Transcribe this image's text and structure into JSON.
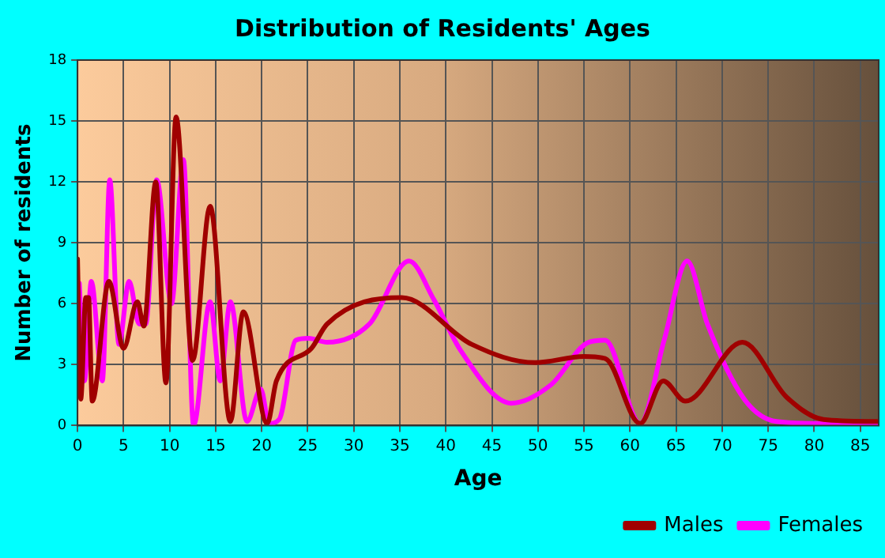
{
  "chart_data": {
    "type": "line",
    "title": "Distribution of Residents' Ages",
    "xlabel": "Age",
    "ylabel": "Number of residents",
    "xlim": [
      0,
      87
    ],
    "xticks": [
      0,
      5,
      10,
      15,
      20,
      25,
      30,
      35,
      40,
      45,
      50,
      55,
      60,
      65,
      70,
      75,
      80,
      85
    ],
    "ylim": [
      0,
      18
    ],
    "yticks": [
      0,
      3,
      6,
      9,
      12,
      15,
      18
    ],
    "grid": true,
    "legend": "bottom right",
    "marker": "none",
    "line_style": "solid",
    "series": [
      {
        "name": "Males",
        "color": "#a00000",
        "x": [
          0,
          0.35,
          0.9,
          1.2,
          1.6,
          3.4,
          5,
          6.5,
          7.2,
          8.5,
          9.6,
          10.7,
          12.5,
          14.4,
          16.6,
          18,
          20.6,
          21.6,
          25.4,
          27.1,
          35.2,
          42.8,
          49.7,
          55,
          57.3,
          61.1,
          63.6,
          66,
          72.2,
          77,
          81,
          86.8
        ],
        "values": [
          8.2,
          1.3,
          6.3,
          6.3,
          1.2,
          7.1,
          3.8,
          6.1,
          4.9,
          12,
          2.1,
          15.2,
          3.2,
          10.8,
          0.2,
          5.6,
          0.1,
          2.2,
          3.8,
          5,
          6.3,
          4,
          3.1,
          3.4,
          3.3,
          0.1,
          2.2,
          1.2,
          4.1,
          1.4,
          0.3,
          0.2
        ]
      },
      {
        "name": "Females",
        "color": "#ff00ff",
        "x": [
          0.2,
          0.75,
          1.5,
          2.7,
          3.5,
          4.5,
          5.6,
          6.7,
          7.4,
          8.6,
          10.2,
          11.5,
          12.6,
          14.4,
          15.5,
          16.6,
          18.4,
          19.9,
          20.8,
          21.9,
          23.7,
          25.1,
          27.1,
          31.7,
          36,
          38.7,
          41.6,
          47.1,
          51.4,
          55.5,
          57.3,
          61.1,
          63.7,
          66.2,
          68.4,
          72.4,
          75.9,
          81.1,
          86.9
        ],
        "values": [
          7,
          2.2,
          7.1,
          2.2,
          12.1,
          4,
          7.1,
          5,
          5,
          12.1,
          6,
          13.1,
          0,
          6.1,
          2.2,
          6.1,
          0.2,
          1.8,
          0.1,
          0.3,
          4.2,
          4.3,
          4.1,
          5,
          8.1,
          6.2,
          3.7,
          1.1,
          2,
          4.1,
          4.2,
          0.1,
          4.2,
          8.1,
          5,
          1.3,
          0.2,
          0.1,
          0.1
        ]
      }
    ]
  }
}
